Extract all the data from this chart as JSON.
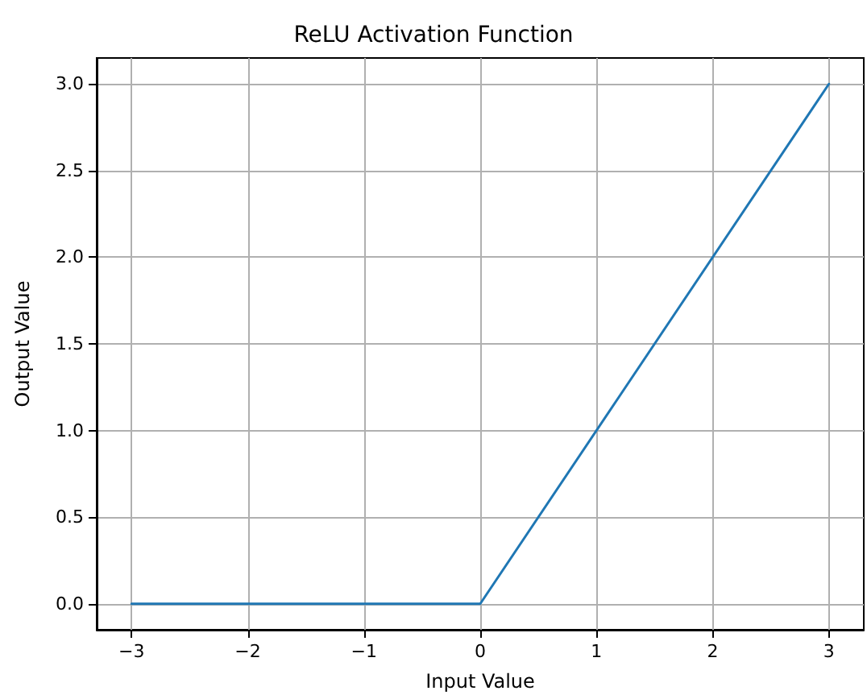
{
  "chart_data": {
    "type": "line",
    "title": "ReLU Activation Function",
    "xlabel": "Input Value",
    "ylabel": "Output Value",
    "x": [
      -3,
      0,
      3
    ],
    "series": [
      {
        "color": "#1f77b4",
        "values": [
          0,
          0,
          3
        ]
      }
    ],
    "xlim": [
      -3.3,
      3.3
    ],
    "xticks": [
      {
        "value": -3,
        "label": "−3"
      },
      {
        "value": -2,
        "label": "−2"
      },
      {
        "value": -1,
        "label": "−1"
      },
      0,
      1,
      2,
      3
    ],
    "ylim": [
      -0.15,
      3.15
    ],
    "yticks": [
      {
        "value": 0,
        "label": "0.0"
      },
      0.5,
      {
        "value": 1,
        "label": "1.0"
      },
      1.5,
      {
        "value": 2,
        "label": "2.0"
      },
      2.5,
      {
        "value": 3,
        "label": "3.0"
      }
    ],
    "grid": true,
    "marker": "none",
    "line_style": "solid"
  }
}
